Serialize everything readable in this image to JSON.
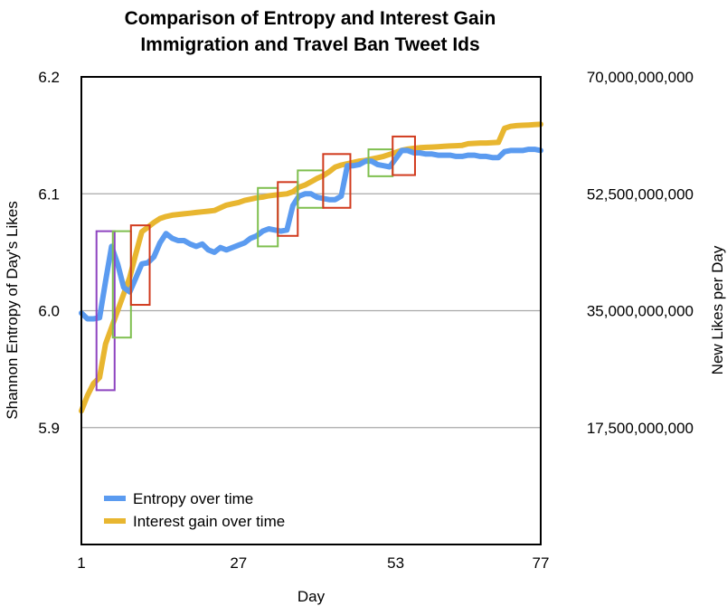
{
  "chart_data": {
    "type": "line",
    "title_lines": [
      "Comparison of Entropy and Interest Gain",
      "Immigration and Travel Ban Tweet Ids"
    ],
    "xlabel": "Day",
    "ylabel_left": "Shannon Entropy of Day's Likes",
    "ylabel_right": "New Likes per Day",
    "xlim": [
      1,
      77
    ],
    "x_ticks": [
      1,
      27,
      53,
      77
    ],
    "x_tick_labels": [
      "1",
      "27",
      "53",
      "77"
    ],
    "ylim_left": [
      5.8,
      6.2
    ],
    "ylim_right": [
      0,
      70000000000
    ],
    "y_ticks_left": [
      5.9,
      6.0,
      6.1,
      6.2
    ],
    "y_tick_labels_left": [
      "5.9",
      "6.0",
      "6.1",
      "6.2"
    ],
    "y_ticks_right": [
      17500000000,
      35000000000,
      52500000000,
      70000000000
    ],
    "y_tick_labels_right": [
      "17,500,000,000",
      "35,000,000,000",
      "52,500,000,000",
      "70,000,000,000"
    ],
    "grid": true,
    "legend_position": "bottom-left",
    "series": [
      {
        "name": "Entropy over time",
        "axis": "left",
        "color": "#5B9BF0",
        "x": [
          1,
          2,
          3,
          4,
          5,
          6,
          7,
          8,
          9,
          10,
          11,
          12,
          13,
          14,
          15,
          16,
          17,
          18,
          19,
          20,
          21,
          22,
          23,
          24,
          25,
          26,
          27,
          28,
          29,
          30,
          31,
          32,
          33,
          34,
          35,
          36,
          37,
          38,
          39,
          40,
          41,
          42,
          43,
          44,
          45,
          46,
          47,
          48,
          49,
          50,
          51,
          52,
          53,
          54,
          55,
          56,
          57,
          58,
          59,
          60,
          61,
          62,
          63,
          64,
          65,
          66,
          67,
          68,
          69,
          70,
          71,
          72,
          73,
          74,
          75,
          76,
          77
        ],
        "values": [
          5.998,
          5.993,
          5.993,
          5.994,
          6.025,
          6.055,
          6.04,
          6.02,
          6.016,
          6.028,
          6.04,
          6.041,
          6.046,
          6.058,
          6.066,
          6.062,
          6.06,
          6.06,
          6.057,
          6.055,
          6.057,
          6.052,
          6.05,
          6.054,
          6.052,
          6.054,
          6.056,
          6.058,
          6.062,
          6.064,
          6.068,
          6.07,
          6.069,
          6.068,
          6.069,
          6.09,
          6.098,
          6.1,
          6.1,
          6.097,
          6.096,
          6.095,
          6.095,
          6.098,
          6.124,
          6.124,
          6.125,
          6.128,
          6.128,
          6.125,
          6.124,
          6.123,
          6.13,
          6.137,
          6.137,
          6.135,
          6.135,
          6.134,
          6.134,
          6.133,
          6.133,
          6.133,
          6.132,
          6.132,
          6.133,
          6.133,
          6.132,
          6.132,
          6.131,
          6.131,
          6.136,
          6.137,
          6.137,
          6.137,
          6.138,
          6.138,
          6.137
        ]
      },
      {
        "name": "Interest gain over time",
        "axis": "right",
        "color": "#E8B630",
        "x": [
          1,
          2,
          3,
          4,
          5,
          6,
          7,
          8,
          9,
          10,
          11,
          12,
          13,
          14,
          15,
          16,
          17,
          18,
          19,
          20,
          21,
          22,
          23,
          24,
          25,
          26,
          27,
          28,
          29,
          30,
          31,
          32,
          33,
          34,
          35,
          36,
          37,
          38,
          39,
          40,
          41,
          42,
          43,
          44,
          45,
          46,
          47,
          48,
          49,
          50,
          51,
          52,
          53,
          54,
          55,
          56,
          57,
          58,
          59,
          60,
          61,
          62,
          63,
          64,
          65,
          66,
          67,
          68,
          69,
          70,
          71,
          72,
          73,
          74,
          75,
          76,
          77
        ],
        "values": [
          20000000000,
          22300000000,
          24100000000,
          25000000000,
          30000000000,
          32500000000,
          35000000000,
          37500000000,
          40000000000,
          43500000000,
          46800000000,
          47500000000,
          48200000000,
          48800000000,
          49100000000,
          49300000000,
          49400000000,
          49500000000,
          49600000000,
          49700000000,
          49800000000,
          49900000000,
          50000000000,
          50400000000,
          50800000000,
          51000000000,
          51200000000,
          51500000000,
          51700000000,
          51900000000,
          52000000000,
          52200000000,
          52300000000,
          52400000000,
          52500000000,
          52800000000,
          53500000000,
          53800000000,
          54300000000,
          54800000000,
          55200000000,
          55800000000,
          56500000000,
          56800000000,
          57000000000,
          57200000000,
          57400000000,
          57500000000,
          57700000000,
          57900000000,
          58100000000,
          58400000000,
          58700000000,
          59000000000,
          59200000000,
          59300000000,
          59400000000,
          59450000000,
          59500000000,
          59550000000,
          59600000000,
          59650000000,
          59700000000,
          59750000000,
          60000000000,
          60050000000,
          60100000000,
          60100000000,
          60150000000,
          60200000000,
          62300000000,
          62600000000,
          62700000000,
          62750000000,
          62800000000,
          62850000000,
          62900000000
        ]
      }
    ],
    "annotation_boxes": [
      {
        "color": "#8E44C0",
        "x_range": [
          3.5,
          6.5
        ],
        "y_range_left": [
          5.932,
          6.068
        ]
      },
      {
        "color": "#7FBF4F",
        "x_range": [
          6.2,
          9.2
        ],
        "y_range_left": [
          5.977,
          6.068
        ]
      },
      {
        "color": "#D13B1E",
        "x_range": [
          9.2,
          12.3
        ],
        "y_range_left": [
          6.005,
          6.073
        ]
      },
      {
        "color": "#7FBF4F",
        "x_range": [
          30.2,
          33.5
        ],
        "y_range_left": [
          6.055,
          6.105
        ]
      },
      {
        "color": "#D13B1E",
        "x_range": [
          33.5,
          36.8
        ],
        "y_range_left": [
          6.064,
          6.11
        ]
      },
      {
        "color": "#7FBF4F",
        "x_range": [
          36.8,
          41.0
        ],
        "y_range_left": [
          6.088,
          6.12
        ]
      },
      {
        "color": "#D13B1E",
        "x_range": [
          41.0,
          45.5
        ],
        "y_range_left": [
          6.088,
          6.134
        ]
      },
      {
        "color": "#7FBF4F",
        "x_range": [
          48.5,
          52.5
        ],
        "y_range_left": [
          6.115,
          6.138
        ]
      },
      {
        "color": "#D13B1E",
        "x_range": [
          52.5,
          56.2
        ],
        "y_range_left": [
          6.116,
          6.149
        ]
      }
    ]
  }
}
